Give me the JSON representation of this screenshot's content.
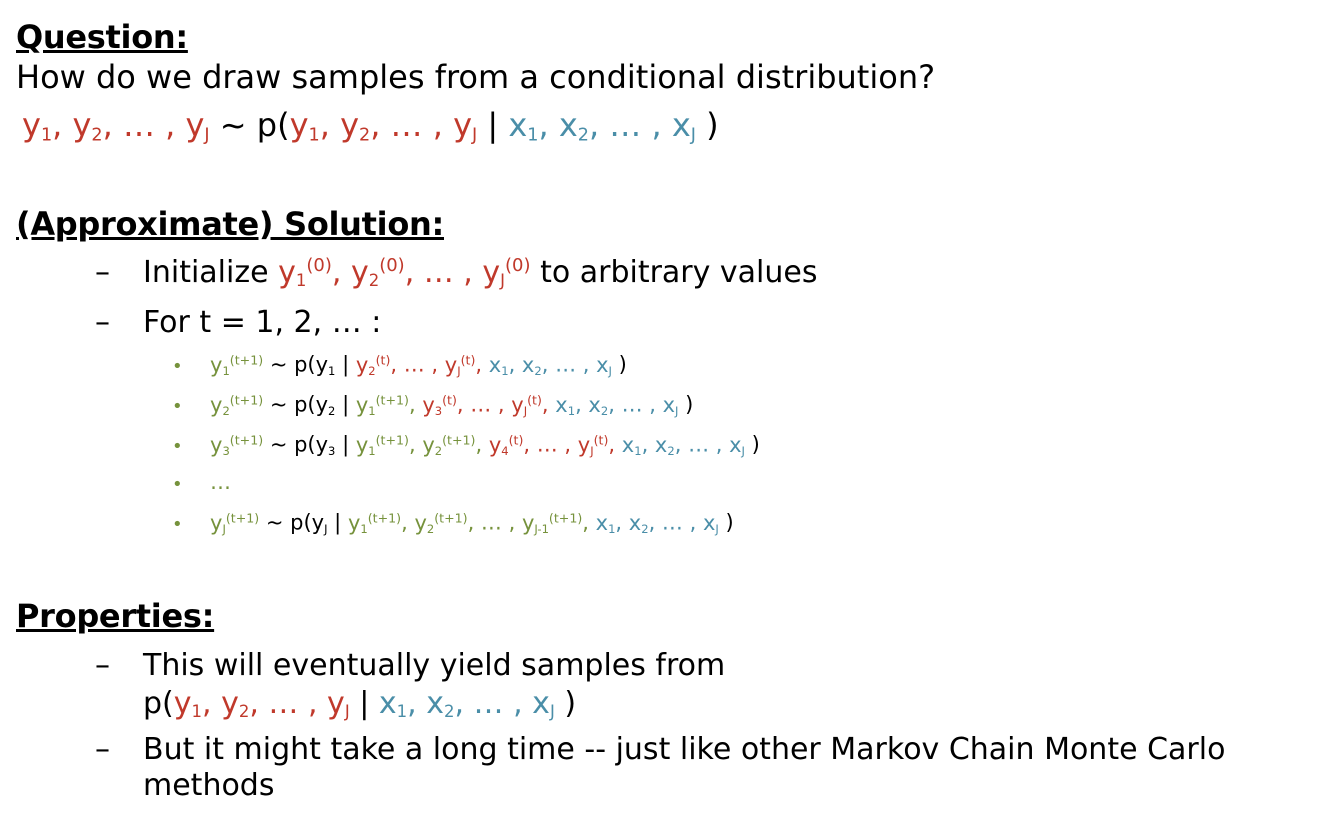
{
  "question": {
    "heading": "Question:",
    "text": "How do we draw samples from a conditional distribution?",
    "formula": [
      {
        "t": "y",
        "sub": "1",
        "c": "red"
      },
      {
        "t": ", ",
        "c": "red"
      },
      {
        "t": "y",
        "sub": "2",
        "c": "red"
      },
      {
        "t": ", … , ",
        "c": "red"
      },
      {
        "t": "y",
        "sub": "J",
        "c": "red"
      },
      {
        "t": " ~ p(",
        "c": "black"
      },
      {
        "t": "y",
        "sub": "1",
        "c": "red"
      },
      {
        "t": ", ",
        "c": "red"
      },
      {
        "t": "y",
        "sub": "2",
        "c": "red"
      },
      {
        "t": ", … , ",
        "c": "red"
      },
      {
        "t": "y",
        "sub": "J",
        "c": "red"
      },
      {
        "t": " | ",
        "c": "black"
      },
      {
        "t": "x",
        "sub": "1",
        "c": "blue"
      },
      {
        "t": ", ",
        "c": "blue"
      },
      {
        "t": "x",
        "sub": "2",
        "c": "blue"
      },
      {
        "t": ", … , ",
        "c": "blue"
      },
      {
        "t": "x",
        "sub": "J",
        "c": "blue"
      },
      {
        "t": " )",
        "c": "black"
      }
    ]
  },
  "solution": {
    "heading": "(Approximate) Solution:",
    "steps": [
      {
        "segs": [
          {
            "t": "Initialize ",
            "c": "black"
          },
          {
            "t": "y",
            "sub": "1",
            "sup": "(0)",
            "c": "red"
          },
          {
            "t": ", ",
            "c": "red"
          },
          {
            "t": "y",
            "sub": "2",
            "sup": "(0)",
            "c": "red"
          },
          {
            "t": ", … , ",
            "c": "red"
          },
          {
            "t": "y",
            "sub": "J",
            "sup": "(0)",
            "c": "red"
          },
          {
            "t": " to arbitrary values",
            "c": "black"
          }
        ]
      },
      {
        "segs": [
          {
            "t": "For t = 1, 2, … :",
            "c": "black"
          }
        ]
      }
    ],
    "updates": [
      {
        "segs": [
          {
            "t": "y",
            "sub": "1",
            "sup": "(t+1)",
            "c": "green"
          },
          {
            "t": " ~ p(y",
            "c": "black"
          },
          {
            "t": "",
            "sub": "1",
            "c": "black"
          },
          {
            "t": " | ",
            "c": "black"
          },
          {
            "t": "y",
            "sub": "2",
            "sup": "(t)",
            "c": "red"
          },
          {
            "t": ", … , ",
            "c": "red"
          },
          {
            "t": "y",
            "sub": "J",
            "sup": "(t)",
            "c": "red"
          },
          {
            "t": ", ",
            "c": "red"
          },
          {
            "t": "x",
            "sub": "1",
            "c": "blue"
          },
          {
            "t": ", ",
            "c": "blue"
          },
          {
            "t": "x",
            "sub": "2",
            "c": "blue"
          },
          {
            "t": ", … , ",
            "c": "blue"
          },
          {
            "t": "x",
            "sub": "J",
            "c": "blue"
          },
          {
            "t": " )",
            "c": "black"
          }
        ]
      },
      {
        "segs": [
          {
            "t": "y",
            "sub": "2",
            "sup": "(t+1)",
            "c": "green"
          },
          {
            "t": " ~ p(y",
            "c": "black"
          },
          {
            "t": "",
            "sub": "2",
            "c": "black"
          },
          {
            "t": " | ",
            "c": "black"
          },
          {
            "t": "y",
            "sub": "1",
            "sup": "(t+1)",
            "c": "green"
          },
          {
            "t": ", ",
            "c": "green"
          },
          {
            "t": "y",
            "sub": "3",
            "sup": "(t)",
            "c": "red"
          },
          {
            "t": ", … , ",
            "c": "red"
          },
          {
            "t": "y",
            "sub": "J",
            "sup": "(t)",
            "c": "red"
          },
          {
            "t": ", ",
            "c": "red"
          },
          {
            "t": "x",
            "sub": "1",
            "c": "blue"
          },
          {
            "t": ", ",
            "c": "blue"
          },
          {
            "t": "x",
            "sub": "2",
            "c": "blue"
          },
          {
            "t": ", … , ",
            "c": "blue"
          },
          {
            "t": "x",
            "sub": "J",
            "c": "blue"
          },
          {
            "t": " )",
            "c": "black"
          }
        ]
      },
      {
        "segs": [
          {
            "t": "y",
            "sub": "3",
            "sup": "(t+1)",
            "c": "green"
          },
          {
            "t": " ~ p(y",
            "c": "black"
          },
          {
            "t": "",
            "sub": "3",
            "c": "black"
          },
          {
            "t": " | ",
            "c": "black"
          },
          {
            "t": "y",
            "sub": "1",
            "sup": "(t+1)",
            "c": "green"
          },
          {
            "t": ", ",
            "c": "green"
          },
          {
            "t": "y",
            "sub": "2",
            "sup": "(t+1)",
            "c": "green"
          },
          {
            "t": ", ",
            "c": "green"
          },
          {
            "t": "y",
            "sub": "4",
            "sup": "(t)",
            "c": "red"
          },
          {
            "t": ", … , ",
            "c": "red"
          },
          {
            "t": "y",
            "sub": "J",
            "sup": "(t)",
            "c": "red"
          },
          {
            "t": ", ",
            "c": "red"
          },
          {
            "t": "x",
            "sub": "1",
            "c": "blue"
          },
          {
            "t": ", ",
            "c": "blue"
          },
          {
            "t": "x",
            "sub": "2",
            "c": "blue"
          },
          {
            "t": ", … , ",
            "c": "blue"
          },
          {
            "t": "x",
            "sub": "J",
            "c": "blue"
          },
          {
            "t": " )",
            "c": "black"
          }
        ]
      },
      {
        "segs": [
          {
            "t": "…",
            "c": "green"
          }
        ]
      },
      {
        "segs": [
          {
            "t": "y",
            "sub": "J",
            "sup": "(t+1)",
            "c": "green"
          },
          {
            "t": " ~ p(y",
            "c": "black"
          },
          {
            "t": "",
            "sub": "J",
            "c": "black"
          },
          {
            "t": " | ",
            "c": "black"
          },
          {
            "t": "y",
            "sub": "1",
            "sup": "(t+1)",
            "c": "green"
          },
          {
            "t": ", ",
            "c": "green"
          },
          {
            "t": "y",
            "sub": "2",
            "sup": "(t+1)",
            "c": "green"
          },
          {
            "t": ", … , ",
            "c": "green"
          },
          {
            "t": "y",
            "sub": "J-1",
            "sup": "(t+1)",
            "c": "green"
          },
          {
            "t": ", ",
            "c": "green"
          },
          {
            "t": "x",
            "sub": "1",
            "c": "blue"
          },
          {
            "t": ", ",
            "c": "blue"
          },
          {
            "t": "x",
            "sub": "2",
            "c": "blue"
          },
          {
            "t": ", … , ",
            "c": "blue"
          },
          {
            "t": "x",
            "sub": "J",
            "c": "blue"
          },
          {
            "t": " )",
            "c": "black"
          }
        ]
      }
    ]
  },
  "properties": {
    "heading": "Properties:",
    "item1_line1": "This will eventually yield samples from",
    "item1_formula": [
      {
        "t": "p(",
        "c": "black"
      },
      {
        "t": "y",
        "sub": "1",
        "c": "red"
      },
      {
        "t": ", ",
        "c": "red"
      },
      {
        "t": "y",
        "sub": "2",
        "c": "red"
      },
      {
        "t": ", … , ",
        "c": "red"
      },
      {
        "t": "y",
        "sub": "J",
        "c": "red"
      },
      {
        "t": " | ",
        "c": "black"
      },
      {
        "t": "x",
        "sub": "1",
        "c": "blue"
      },
      {
        "t": ", ",
        "c": "blue"
      },
      {
        "t": "x",
        "sub": "2",
        "c": "blue"
      },
      {
        "t": ", … , ",
        "c": "blue"
      },
      {
        "t": "x",
        "sub": "J",
        "c": "blue"
      },
      {
        "t": " )",
        "c": "black"
      }
    ],
    "item2_line1": "But it might take a long time -- just like other Markov Chain Monte Carlo",
    "item2_line2": "methods",
    "dash": "–"
  },
  "colors": {
    "red": "#c0392b",
    "blue": "#4a8ea8",
    "green": "#76923c",
    "black": "#000000"
  }
}
